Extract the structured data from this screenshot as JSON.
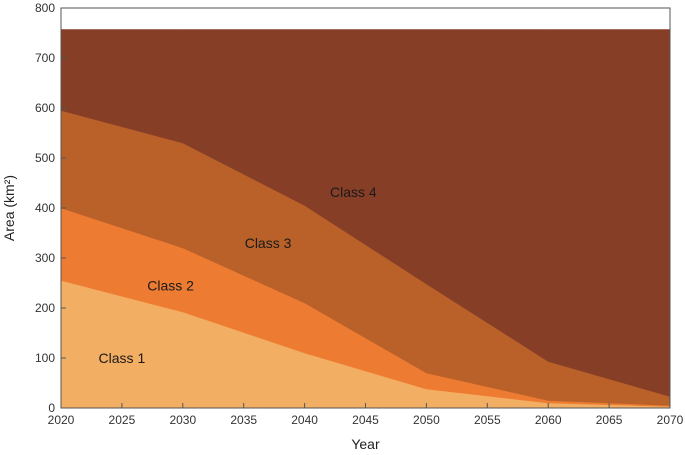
{
  "chart_data": {
    "type": "area",
    "stacked": true,
    "title": "",
    "xlabel": "Year",
    "ylabel": "Area (km²)",
    "xlim": [
      2020,
      2070
    ],
    "ylim": [
      0,
      800
    ],
    "xticks": [
      2020,
      2025,
      2030,
      2035,
      2040,
      2045,
      2050,
      2055,
      2060,
      2065,
      2070
    ],
    "yticks": [
      0,
      100,
      200,
      300,
      400,
      500,
      600,
      700,
      800
    ],
    "grid": false,
    "legend": "none",
    "x": [
      2020,
      2030,
      2040,
      2050,
      2060,
      2070
    ],
    "series": [
      {
        "name": "Class 1",
        "color": "#F2AE62",
        "values": [
          255,
          192,
          110,
          38,
          10,
          3
        ]
      },
      {
        "name": "Class 2",
        "color": "#EE7B32",
        "values": [
          145,
          128,
          100,
          32,
          5,
          2
        ]
      },
      {
        "name": "Class 3",
        "color": "#B96129",
        "values": [
          195,
          210,
          195,
          178,
          78,
          18
        ]
      },
      {
        "name": "Class 4",
        "color": "#873E26",
        "values": [
          162,
          227,
          352,
          509,
          664,
          734
        ]
      }
    ]
  }
}
